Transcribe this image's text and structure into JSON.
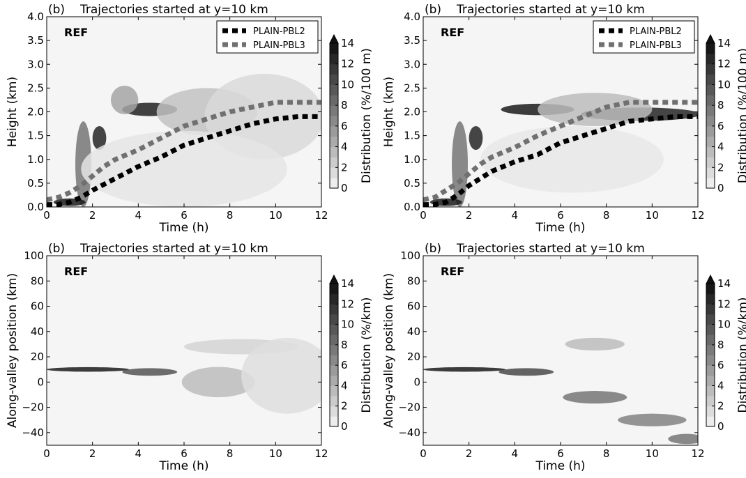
{
  "chart_data": [
    {
      "type": "heatmap",
      "panel_label": "(b)",
      "title": "Trajectories started at y=10 km",
      "inset_label": "REF",
      "xlabel": "Time (h)",
      "ylabel": "Height (km)",
      "xlim": [
        0,
        12
      ],
      "ylim": [
        0,
        4
      ],
      "xticks": [
        "0",
        "2",
        "4",
        "6",
        "8",
        "10",
        "12"
      ],
      "yticks": [
        "0.0",
        "0.5",
        "1.0",
        "1.5",
        "2.0",
        "2.5",
        "3.0",
        "3.5",
        "4.0"
      ],
      "colorbar": {
        "label": "Distribution (%/100 m)",
        "ticks": [
          "0",
          "2",
          "4",
          "6",
          "8",
          "10",
          "12",
          "14"
        ],
        "range": [
          0,
          14
        ]
      },
      "legend": {
        "position": "top-right",
        "entries": [
          {
            "name": "PLAIN-PBL2",
            "color": "#000000"
          },
          {
            "name": "PLAIN-PBL3",
            "color": "#707070"
          }
        ]
      },
      "series": [
        {
          "name": "PLAIN-PBL2",
          "color": "#000000",
          "x": [
            0,
            0.5,
            1,
            1.5,
            2,
            3,
            4,
            5,
            6,
            7,
            8,
            9,
            10,
            11,
            12
          ],
          "y": [
            0.05,
            0.05,
            0.1,
            0.2,
            0.35,
            0.6,
            0.85,
            1.05,
            1.3,
            1.45,
            1.6,
            1.75,
            1.85,
            1.9,
            1.9
          ]
        },
        {
          "name": "PLAIN-PBL3",
          "color": "#707070",
          "x": [
            0,
            0.5,
            1,
            1.5,
            2,
            2.5,
            3,
            4,
            5,
            6,
            7,
            8,
            9,
            10,
            11,
            12
          ],
          "y": [
            0.15,
            0.2,
            0.3,
            0.45,
            0.65,
            0.85,
            1.0,
            1.2,
            1.45,
            1.7,
            1.85,
            2.0,
            2.1,
            2.2,
            2.2,
            2.2
          ]
        }
      ]
    },
    {
      "type": "heatmap",
      "panel_label": "(b)",
      "title": "Trajectories started at y=10 km",
      "inset_label": "REF",
      "xlabel": "Time (h)",
      "ylabel": "Height (km)",
      "xlim": [
        0,
        12
      ],
      "ylim": [
        0,
        4
      ],
      "xticks": [
        "0",
        "2",
        "4",
        "6",
        "8",
        "10",
        "12"
      ],
      "yticks": [
        "0.0",
        "0.5",
        "1.0",
        "1.5",
        "2.0",
        "2.5",
        "3.0",
        "3.5",
        "4.0"
      ],
      "colorbar": {
        "label": "Distribution (%/100 m)",
        "ticks": [
          "0",
          "2",
          "4",
          "6",
          "8",
          "10",
          "12",
          "14"
        ],
        "range": [
          0,
          14
        ]
      },
      "legend": {
        "position": "top-right",
        "entries": [
          {
            "name": "PLAIN-PBL2",
            "color": "#000000"
          },
          {
            "name": "PLAIN-PBL3",
            "color": "#707070"
          }
        ]
      },
      "series": [
        {
          "name": "PLAIN-PBL2",
          "color": "#000000",
          "x": [
            0,
            0.5,
            1,
            1.5,
            2,
            3,
            4,
            5,
            6,
            7,
            8,
            9,
            10,
            11,
            12
          ],
          "y": [
            0.05,
            0.05,
            0.1,
            0.25,
            0.45,
            0.75,
            0.95,
            1.1,
            1.35,
            1.5,
            1.65,
            1.8,
            1.85,
            1.9,
            1.9
          ]
        },
        {
          "name": "PLAIN-PBL3",
          "color": "#707070",
          "x": [
            0,
            0.5,
            1,
            1.5,
            2,
            2.5,
            3,
            4,
            5,
            6,
            7,
            8,
            9,
            10,
            11,
            12
          ],
          "y": [
            0.15,
            0.2,
            0.35,
            0.5,
            0.7,
            0.9,
            1.05,
            1.25,
            1.5,
            1.7,
            1.9,
            2.1,
            2.2,
            2.2,
            2.2,
            2.2
          ]
        }
      ]
    },
    {
      "type": "heatmap",
      "panel_label": "(b)",
      "title": "Trajectories started at y=10 km",
      "inset_label": "REF",
      "xlabel": "Time (h)",
      "ylabel": "Along-valley position (km)",
      "xlim": [
        0,
        12
      ],
      "ylim": [
        -50,
        100
      ],
      "xticks": [
        "0",
        "2",
        "4",
        "6",
        "8",
        "10",
        "12"
      ],
      "yticks": [
        "−40",
        "−20",
        "0",
        "20",
        "40",
        "60",
        "80",
        "100"
      ],
      "colorbar": {
        "label": "Distribution (%/km)",
        "ticks": [
          "0",
          "2",
          "4",
          "6",
          "8",
          "10",
          "12",
          "14"
        ],
        "range": [
          0,
          14
        ]
      },
      "series": []
    },
    {
      "type": "heatmap",
      "panel_label": "(b)",
      "title": "Trajectories started at y=10 km",
      "inset_label": "REF",
      "xlabel": "Time (h)",
      "ylabel": "Along-valley position (km)",
      "xlim": [
        0,
        12
      ],
      "ylim": [
        -50,
        100
      ],
      "xticks": [
        "0",
        "2",
        "4",
        "6",
        "8",
        "10",
        "12"
      ],
      "yticks": [
        "−40",
        "−20",
        "0",
        "20",
        "40",
        "60",
        "80",
        "100"
      ],
      "colorbar": {
        "label": "Distribution (%/km)",
        "ticks": [
          "0",
          "2",
          "4",
          "6",
          "8",
          "10",
          "12",
          "14"
        ],
        "range": [
          0,
          14
        ]
      },
      "series": []
    }
  ]
}
